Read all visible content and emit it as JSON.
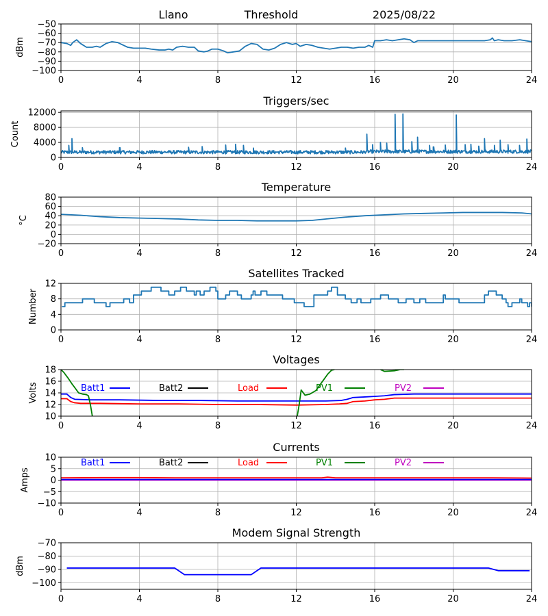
{
  "header": {
    "site": "Llano",
    "mode": "Threshold",
    "date": "2025/08/22"
  },
  "colors": {
    "series": "#1f77b4",
    "batt1": "#0000ff",
    "batt2": "#000000",
    "load": "#ff0000",
    "pv1": "#008000",
    "pv2": "#bf00bf",
    "grid": "#b0b0b0"
  },
  "x_ticks": [
    "0",
    "4",
    "8",
    "12",
    "16",
    "20",
    "24"
  ],
  "chart_data": [
    {
      "id": "threshold",
      "type": "line",
      "title": "",
      "ylabel": "dBm",
      "xlim": [
        0,
        24
      ],
      "ylim": [
        -100,
        -50
      ],
      "yticks": [
        -100,
        -90,
        -80,
        -70,
        -60,
        -50
      ],
      "ytick_labels": [
        "−100",
        "−90",
        "−80",
        "−70",
        "−60",
        "−50"
      ],
      "series": [
        {
          "name": "Threshold",
          "color": "#1f77b4",
          "x": [
            0,
            0.3,
            0.5,
            0.6,
            0.8,
            1.0,
            1.3,
            1.6,
            1.8,
            2.0,
            2.3,
            2.6,
            2.9,
            3.1,
            3.4,
            3.7,
            4.0,
            4.3,
            4.6,
            5.0,
            5.3,
            5.5,
            5.7,
            5.9,
            6.2,
            6.5,
            6.8,
            7.0,
            7.3,
            7.5,
            7.7,
            8.0,
            8.3,
            8.5,
            8.8,
            9.1,
            9.4,
            9.7,
            10.0,
            10.3,
            10.6,
            10.9,
            11.2,
            11.5,
            11.8,
            12.0,
            12.2,
            12.5,
            12.8,
            13.1,
            13.4,
            13.7,
            14.0,
            14.3,
            14.6,
            14.9,
            15.2,
            15.5,
            15.7,
            15.9,
            16.0,
            16.3,
            16.6,
            16.9,
            17.2,
            17.5,
            17.8,
            18.0,
            18.2,
            18.5,
            18.8,
            19.2,
            19.6,
            20.0,
            20.4,
            20.8,
            21.2,
            21.6,
            21.9,
            22.0,
            22.1,
            22.3,
            22.6,
            23.0,
            23.4,
            23.7,
            24.0
          ],
          "y": [
            -70,
            -71,
            -73,
            -70,
            -67,
            -71,
            -75,
            -75,
            -74,
            -75,
            -71,
            -69,
            -70,
            -72,
            -75,
            -76,
            -76,
            -76,
            -77,
            -78,
            -78,
            -77,
            -78,
            -75,
            -74,
            -75,
            -75,
            -79,
            -80,
            -79,
            -77,
            -77,
            -79,
            -81,
            -80,
            -79,
            -74,
            -71,
            -72,
            -77,
            -78,
            -76,
            -72,
            -70,
            -72,
            -71,
            -74,
            -72,
            -73,
            -75,
            -76,
            -77,
            -76,
            -75,
            -75,
            -76,
            -75,
            -75,
            -73,
            -75,
            -68,
            -68,
            -67,
            -68,
            -67,
            -66,
            -67,
            -70,
            -68,
            -68,
            -68,
            -68,
            -68,
            -68,
            -68,
            -68,
            -68,
            -68,
            -67,
            -65,
            -68,
            -67,
            -68,
            -68,
            -67,
            -68,
            -69
          ]
        }
      ]
    },
    {
      "id": "triggers",
      "type": "line",
      "title": "Triggers/sec",
      "ylabel": "Count",
      "xlim": [
        0,
        24
      ],
      "ylim": [
        0,
        12400
      ],
      "yticks": [
        0,
        4000,
        8000,
        12000
      ],
      "ytick_labels": [
        "0",
        "4000",
        "8000",
        "12000"
      ],
      "baseline": 1400,
      "noise": 450,
      "spikes": [
        [
          0.55,
          5000
        ],
        [
          0.4,
          3200
        ],
        [
          1.1,
          2600
        ],
        [
          3.0,
          2600
        ],
        [
          6.5,
          2700
        ],
        [
          7.2,
          2900
        ],
        [
          8.4,
          3300
        ],
        [
          8.9,
          3500
        ],
        [
          9.3,
          3200
        ],
        [
          9.8,
          2500
        ],
        [
          11.0,
          2700
        ],
        [
          13.0,
          2400
        ],
        [
          14.5,
          2500
        ],
        [
          15.6,
          6200
        ],
        [
          15.9,
          3400
        ],
        [
          16.3,
          4000
        ],
        [
          16.6,
          3800
        ],
        [
          17.05,
          11500
        ],
        [
          17.45,
          11600
        ],
        [
          17.9,
          4200
        ],
        [
          18.2,
          5400
        ],
        [
          18.8,
          3200
        ],
        [
          19.0,
          2800
        ],
        [
          19.6,
          3300
        ],
        [
          20.15,
          11300
        ],
        [
          20.6,
          3400
        ],
        [
          20.9,
          3500
        ],
        [
          21.3,
          3000
        ],
        [
          21.6,
          5000
        ],
        [
          22.1,
          3200
        ],
        [
          22.4,
          4600
        ],
        [
          22.8,
          3400
        ],
        [
          23.4,
          3200
        ],
        [
          23.75,
          4900
        ]
      ]
    },
    {
      "id": "temperature",
      "type": "line",
      "title": "Temperature",
      "ylabel": "°C",
      "xlim": [
        0,
        24
      ],
      "ylim": [
        -20,
        80
      ],
      "yticks": [
        -20,
        0,
        20,
        40,
        60,
        80
      ],
      "ytick_labels": [
        "−20",
        "0",
        "20",
        "40",
        "60",
        "80"
      ],
      "series": [
        {
          "name": "Temperature",
          "color": "#1f77b4",
          "x": [
            0,
            1,
            2,
            3,
            4,
            5,
            6,
            7,
            8,
            9,
            10,
            11,
            12,
            12.8,
            13.5,
            14.5,
            15.5,
            16.5,
            17.5,
            18.5,
            19.5,
            20.5,
            21.5,
            22.5,
            23.5,
            24
          ],
          "y": [
            43,
            41,
            38,
            36,
            35,
            34,
            33,
            31,
            30,
            30,
            29,
            29,
            29,
            30,
            33,
            37,
            40,
            42,
            44,
            45,
            46,
            47,
            47,
            47,
            46,
            44
          ]
        }
      ]
    },
    {
      "id": "satellites",
      "type": "line",
      "step": true,
      "title": "Satellites Tracked",
      "ylabel": "Number",
      "xlim": [
        0,
        24
      ],
      "ylim": [
        0,
        12
      ],
      "yticks": [
        0,
        4,
        8,
        12
      ],
      "ytick_labels": [
        "0",
        "4",
        "8",
        "12"
      ],
      "series": [
        {
          "name": "Satellites",
          "color": "#1f77b4",
          "x": [
            0.05,
            0.2,
            0.5,
            1.1,
            1.6,
            1.7,
            2.3,
            2.5,
            3.0,
            3.2,
            3.3,
            3.5,
            3.7,
            4.1,
            4.6,
            5.1,
            5.5,
            5.8,
            6.1,
            6.4,
            6.8,
            6.9,
            7.1,
            7.3,
            7.6,
            7.9,
            8.0,
            8.4,
            8.6,
            9.0,
            9.2,
            9.7,
            9.8,
            9.9,
            10.2,
            10.5,
            11.3,
            11.6,
            11.9,
            12.4,
            12.9,
            13.1,
            13.6,
            13.8,
            14.1,
            14.5,
            14.8,
            15.1,
            15.3,
            15.8,
            16.3,
            16.7,
            17.2,
            17.6,
            18.0,
            18.3,
            18.6,
            19.5,
            19.6,
            20.3,
            21.6,
            21.8,
            22.2,
            22.5,
            22.7,
            22.8,
            23.0,
            23.4,
            23.5,
            23.8,
            23.9,
            24.0
          ],
          "y": [
            6,
            7,
            7,
            8,
            8,
            7,
            6,
            7,
            7,
            8,
            8,
            7,
            9,
            10,
            11,
            10,
            9,
            10,
            11,
            10,
            9,
            10,
            9,
            10,
            11,
            10,
            8,
            9,
            10,
            9,
            8,
            9,
            10,
            9,
            10,
            9,
            8,
            8,
            7,
            6,
            9,
            9,
            10,
            11,
            9,
            8,
            7,
            8,
            7,
            8,
            9,
            8,
            7,
            8,
            7,
            8,
            7,
            9,
            8,
            7,
            9,
            10,
            9,
            8,
            7,
            6,
            7,
            8,
            7,
            6,
            7,
            6
          ]
        }
      ]
    },
    {
      "id": "voltages",
      "type": "line",
      "title": "Voltages",
      "ylabel": "Volts",
      "xlim": [
        0,
        24
      ],
      "ylim": [
        10,
        18
      ],
      "yticks": [
        10,
        12,
        14,
        16,
        18
      ],
      "ytick_labels": [
        "10",
        "12",
        "14",
        "16",
        "18"
      ],
      "legend": [
        "Batt1",
        "Batt2",
        "Load",
        "PV1",
        "PV2"
      ],
      "series": [
        {
          "name": "Batt1",
          "color": "#0000ff",
          "x": [
            0,
            0.3,
            0.5,
            0.7,
            1.5,
            3,
            5,
            7,
            9,
            11,
            12,
            13.5,
            14.3,
            14.6,
            14.9,
            15.5,
            16,
            16.5,
            17,
            18,
            20,
            22,
            24
          ],
          "y": [
            13.8,
            13.8,
            13.2,
            12.9,
            12.8,
            12.8,
            12.7,
            12.7,
            12.6,
            12.6,
            12.6,
            12.6,
            12.7,
            12.9,
            13.2,
            13.3,
            13.4,
            13.5,
            13.7,
            13.8,
            13.8,
            13.8,
            13.8
          ]
        },
        {
          "name": "Load",
          "color": "#ff0000",
          "x": [
            0,
            0.3,
            0.5,
            0.7,
            1,
            2,
            4,
            6,
            8,
            10,
            12,
            13.5,
            14.2,
            14.6,
            14.9,
            15.5,
            16,
            16.5,
            17,
            18,
            20,
            22,
            24
          ],
          "y": [
            13.0,
            13.0,
            12.5,
            12.3,
            12.2,
            12.2,
            12.1,
            12.1,
            12.0,
            12.0,
            11.9,
            12.0,
            12.1,
            12.2,
            12.5,
            12.6,
            12.8,
            12.9,
            13.1,
            13.1,
            13.1,
            13.1,
            13.1
          ]
        },
        {
          "name": "PV1",
          "color": "#008000",
          "x": [
            0,
            0.15,
            0.35,
            0.55,
            0.75,
            0.9,
            1.1,
            1.3,
            1.4,
            1.5,
            1.6
          ],
          "y": [
            18,
            17.5,
            16.6,
            15.6,
            14.7,
            14.0,
            13.8,
            13.7,
            13.5,
            12.0,
            10
          ],
          "x2": [
            12.05,
            12.15,
            12.25,
            12.45,
            12.7,
            13.0,
            13.3,
            13.6,
            13.8,
            13.95
          ],
          "y2": [
            10,
            12.0,
            14.5,
            13.6,
            13.8,
            14.4,
            15.8,
            17.2,
            17.9,
            18
          ],
          "x3": [
            16.3,
            16.5,
            17.0,
            17.3,
            17.5
          ],
          "y3": [
            18,
            17.7,
            17.8,
            18.0,
            18
          ]
        },
        {
          "name": "Batt2",
          "color": "#000000",
          "x": [],
          "y": []
        },
        {
          "name": "PV2",
          "color": "#bf00bf",
          "x": [],
          "y": []
        }
      ]
    },
    {
      "id": "currents",
      "type": "line",
      "title": "Currents",
      "ylabel": "Amps",
      "xlim": [
        0,
        24
      ],
      "ylim": [
        -10,
        10
      ],
      "yticks": [
        -10,
        -5,
        0,
        5,
        10
      ],
      "ytick_labels": [
        "−10",
        "−5",
        "0",
        "5",
        "10"
      ],
      "legend": [
        "Batt1",
        "Batt2",
        "Load",
        "PV1",
        "PV2"
      ],
      "series": [
        {
          "name": "PV2",
          "color": "#bf00bf",
          "x": [
            0,
            24
          ],
          "y": [
            0,
            0
          ]
        },
        {
          "name": "Batt1",
          "color": "#0000ff",
          "x": [
            0,
            24
          ],
          "y": [
            0.3,
            0.3
          ]
        },
        {
          "name": "Load",
          "color": "#ff0000",
          "x": [
            0,
            2,
            4,
            6,
            8,
            10,
            12,
            13.3,
            13.6,
            14,
            16,
            18,
            20,
            22,
            24
          ],
          "y": [
            1.0,
            1.1,
            1.1,
            1.0,
            1.0,
            1.0,
            1.0,
            1.0,
            1.3,
            1.0,
            1.0,
            1.0,
            1.0,
            1.0,
            0.9
          ]
        },
        {
          "name": "Batt2",
          "color": "#000000",
          "x": [],
          "y": []
        },
        {
          "name": "PV1",
          "color": "#008000",
          "x": [],
          "y": []
        }
      ]
    },
    {
      "id": "modem",
      "type": "line",
      "title": "Modem Signal Strength",
      "ylabel": "dBm",
      "xlim": [
        0,
        24
      ],
      "ylim": [
        -105,
        -70
      ],
      "yticks": [
        -100,
        -90,
        -80,
        -70
      ],
      "ytick_labels": [
        "−100",
        "−90",
        "−80",
        "−70"
      ],
      "series": [
        {
          "name": "Modem",
          "color": "#0000ff",
          "x": [
            0.3,
            5.8,
            6.3,
            9.7,
            10.2,
            21.8,
            22.3,
            23.9
          ],
          "y": [
            -89,
            -89,
            -94,
            -94,
            -89,
            -89,
            -91,
            -91
          ]
        }
      ]
    }
  ]
}
